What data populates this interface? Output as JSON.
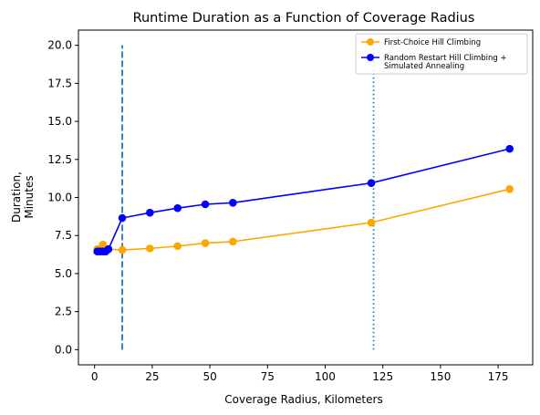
{
  "chart_data": {
    "type": "line",
    "title": "Runtime Duration as a Function of Coverage Radius",
    "xlabel": "Coverage Radius, Kilometers",
    "ylabel": [
      "Duration,",
      "Minutes"
    ],
    "xlim": [
      -7,
      190
    ],
    "ylim": [
      -1,
      21
    ],
    "xticks": [
      0,
      25,
      50,
      75,
      100,
      125,
      150,
      175
    ],
    "yticks": [
      0.0,
      2.5,
      5.0,
      7.5,
      10.0,
      12.5,
      15.0,
      17.5,
      20.0
    ],
    "xtick_labels": [
      "0",
      "25",
      "50",
      "75",
      "100",
      "125",
      "150",
      "175"
    ],
    "ytick_labels": [
      "0.0",
      "2.5",
      "5.0",
      "7.5",
      "10.0",
      "12.5",
      "15.0",
      "17.5",
      "20.0"
    ],
    "grid": false,
    "legend_position": "top-right",
    "series": [
      {
        "name": "First-Choice Hill Climbing",
        "color": "#ffa500",
        "marker": "circle",
        "x": [
          1.2,
          2.4,
          3.6,
          4.8,
          6.0,
          12,
          24,
          36,
          48,
          60,
          120,
          180
        ],
        "y": [
          6.6,
          6.6,
          6.9,
          6.6,
          6.6,
          6.55,
          6.65,
          6.8,
          7.0,
          7.1,
          8.35,
          10.55
        ]
      },
      {
        "name": "Random Restart Hill Climbing +\nSimulated Annealing",
        "color": "#0000ff",
        "marker": "circle",
        "x": [
          1.2,
          2.4,
          3.6,
          4.8,
          6.0,
          12,
          24,
          36,
          48,
          60,
          120,
          180
        ],
        "y": [
          6.45,
          6.45,
          6.45,
          6.45,
          6.6,
          8.65,
          9.0,
          9.3,
          9.55,
          9.65,
          10.95,
          13.2
        ]
      }
    ],
    "reference_lines": [
      {
        "style": "dashed",
        "x": 12,
        "y": [
          0,
          20
        ],
        "color": "#1f77b4"
      },
      {
        "style": "dotted",
        "x": 121,
        "y": [
          0,
          20
        ],
        "color": "#1f77b4"
      }
    ]
  }
}
